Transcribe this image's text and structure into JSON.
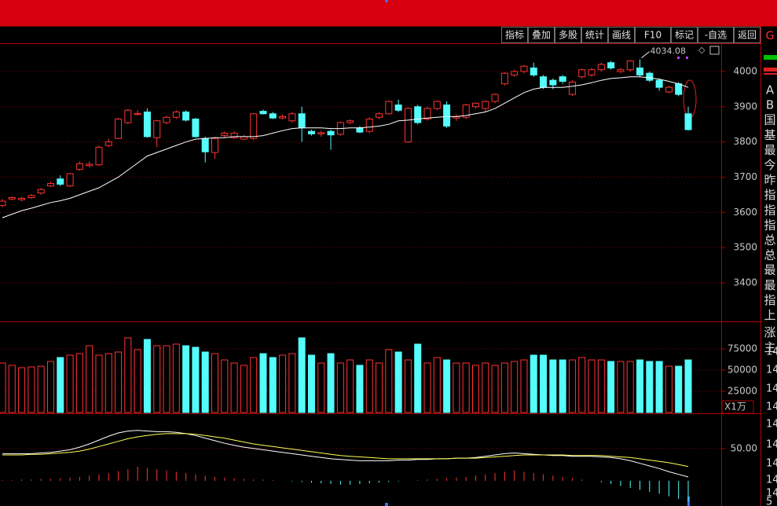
{
  "toolbar": [
    "指标",
    "叠加",
    "多股",
    "统计",
    "画线",
    "F10",
    "标记",
    "-自选",
    "返回"
  ],
  "side_top": "G",
  "side_labels": [
    "A",
    "B",
    "国",
    "基",
    "最",
    "今",
    "昨",
    "指",
    "指",
    "指",
    "总",
    "总",
    "最",
    "最",
    "指",
    "上",
    "涨",
    "主"
  ],
  "side_values": [
    "14",
    "14",
    "14",
    "14",
    "14",
    "14",
    "14",
    "14",
    "14",
    "5"
  ],
  "chart_data": [
    {
      "type": "candlestick",
      "annotation": "4034.08",
      "up_color": "#ff3232",
      "down_color": "#54fcfc",
      "grid": true,
      "ylim": [
        3293,
        4078
      ],
      "yticks": [
        3400,
        3500,
        3600,
        3700,
        3800,
        3900,
        4000
      ],
      "open": [
        3620,
        3638,
        3636,
        3642,
        3655,
        3675,
        3695,
        3675,
        3722,
        3733,
        3735,
        3790,
        3810,
        3855,
        3878,
        3885,
        3812,
        3855,
        3870,
        3885,
        3865,
        3810,
        3770,
        3818,
        3812,
        3808,
        3810,
        3887,
        3880,
        3868,
        3860,
        3880,
        3830,
        3823,
        3830,
        3822,
        3855,
        3840,
        3830,
        3870,
        3880,
        3905,
        3800,
        3900,
        3865,
        3895,
        3905,
        3868,
        3870,
        3900,
        3895,
        3915,
        3965,
        3990,
        4000,
        4010,
        3985,
        3975,
        3985,
        3935,
        3985,
        3990,
        4005,
        4025,
        4000,
        4005,
        4010,
        3995,
        3975,
        3942,
        3965,
        3880
      ],
      "high": [
        3638,
        3645,
        3644,
        3652,
        3670,
        3688,
        3705,
        3712,
        3745,
        3745,
        3790,
        3810,
        3868,
        3893,
        3890,
        3895,
        3863,
        3875,
        3890,
        3890,
        3868,
        3815,
        3815,
        3830,
        3830,
        3820,
        3882,
        3892,
        3885,
        3878,
        3885,
        3900,
        3835,
        3832,
        3835,
        3858,
        3864,
        3845,
        3870,
        3885,
        3918,
        3920,
        3898,
        3905,
        3900,
        3918,
        3915,
        3878,
        3908,
        3912,
        3918,
        3938,
        3998,
        4005,
        4018,
        4025,
        3990,
        3980,
        3990,
        3975,
        4008,
        4010,
        4025,
        4030,
        4010,
        4032,
        4034.08,
        4000,
        3980,
        3960,
        3970,
        3900
      ],
      "low": [
        3615,
        3635,
        3632,
        3638,
        3650,
        3672,
        3675,
        3672,
        3718,
        3728,
        3732,
        3785,
        3808,
        3850,
        3875,
        3812,
        3785,
        3850,
        3865,
        3858,
        3812,
        3742,
        3752,
        3812,
        3808,
        3805,
        3805,
        3878,
        3865,
        3864,
        3855,
        3800,
        3818,
        3815,
        3778,
        3818,
        3850,
        3825,
        3825,
        3865,
        3878,
        3885,
        3798,
        3850,
        3860,
        3890,
        3840,
        3860,
        3865,
        3895,
        3885,
        3910,
        3960,
        3985,
        3995,
        3985,
        3950,
        3950,
        3965,
        3930,
        3980,
        3985,
        4000,
        4005,
        3995,
        4000,
        3985,
        3970,
        3945,
        3938,
        3930,
        3832
      ],
      "close": [
        3632,
        3642,
        3640,
        3648,
        3665,
        3682,
        3680,
        3710,
        3738,
        3737,
        3785,
        3800,
        3865,
        3890,
        3881,
        3815,
        3860,
        3870,
        3885,
        3862,
        3815,
        3772,
        3810,
        3825,
        3825,
        3815,
        3880,
        3880,
        3868,
        3872,
        3880,
        3840,
        3823,
        3826,
        3820,
        3855,
        3860,
        3828,
        3865,
        3880,
        3915,
        3890,
        3895,
        3855,
        3895,
        3915,
        3845,
        3872,
        3905,
        3910,
        3915,
        3935,
        3995,
        4000,
        4015,
        3990,
        3955,
        3962,
        3972,
        3970,
        4005,
        4005,
        4020,
        4010,
        4005,
        4030,
        3990,
        3975,
        3955,
        3955,
        3935,
        3835
      ],
      "series": [
        {
          "color": "#ffffff",
          "values": [
            3585,
            3595,
            3605,
            3612,
            3620,
            3628,
            3633,
            3640,
            3650,
            3660,
            3670,
            3685,
            3700,
            3720,
            3740,
            3760,
            3770,
            3780,
            3790,
            3800,
            3808,
            3810,
            3812,
            3812,
            3815,
            3815,
            3815,
            3818,
            3825,
            3832,
            3838,
            3840,
            3840,
            3840,
            3838,
            3838,
            3840,
            3840,
            3842,
            3845,
            3850,
            3860,
            3862,
            3865,
            3868,
            3870,
            3872,
            3872,
            3875,
            3880,
            3885,
            3895,
            3910,
            3925,
            3940,
            3950,
            3955,
            3955,
            3955,
            3958,
            3962,
            3968,
            3975,
            3980,
            3982,
            3985,
            3985,
            3982,
            3978,
            3972,
            3965,
            3955
          ]
        }
      ]
    },
    {
      "type": "bar",
      "axis_label": "X1万",
      "grid": true,
      "ylim": [
        0,
        106500
      ],
      "yticks": [
        25000,
        50000,
        75000
      ],
      "values": [
        58300,
        55600,
        52800,
        53700,
        54600,
        60200,
        64800,
        67600,
        69400,
        78700,
        67600,
        69400,
        71300,
        88000,
        74100,
        86100,
        78700,
        78700,
        80600,
        78700,
        76900,
        71300,
        69400,
        62000,
        58300,
        55600,
        64800,
        69400,
        64800,
        67600,
        69400,
        88000,
        67600,
        58300,
        69400,
        58300,
        62000,
        55600,
        62000,
        58300,
        74100,
        71300,
        62000,
        80600,
        58300,
        64800,
        62000,
        58300,
        58300,
        55600,
        58300,
        55600,
        58300,
        60200,
        62000,
        67600,
        67600,
        62000,
        62000,
        62000,
        64800,
        62000,
        62000,
        60200,
        60200,
        60200,
        62000,
        60200,
        60200,
        54600,
        54600,
        62000
      ]
    },
    {
      "type": "macd",
      "grid": true,
      "ylim": [
        -39,
        102
      ],
      "yticks": [
        {
          "value": 50,
          "label": "50.00"
        }
      ],
      "values": [
        1,
        1,
        2,
        2,
        3,
        3,
        4,
        5,
        6,
        8,
        10,
        12,
        15,
        18,
        22,
        20,
        18,
        16,
        14,
        12,
        10,
        8,
        6,
        5,
        4,
        3,
        2,
        2,
        1,
        0,
        -1,
        -2,
        -3,
        -4,
        -5,
        -6,
        -6,
        -5,
        -4,
        -3,
        -2,
        -1,
        0,
        1,
        2,
        3,
        4,
        5,
        6,
        8,
        10,
        12,
        14,
        16,
        14,
        12,
        10,
        8,
        6,
        4,
        2,
        0,
        -2,
        -5,
        -8,
        -11,
        -14,
        -17,
        -20,
        -24,
        -28,
        -32
      ],
      "series": [
        {
          "color": "#ffffff",
          "values": [
            42,
            42,
            42,
            42,
            43,
            44,
            46,
            48,
            52,
            57,
            63,
            69,
            74,
            77,
            78,
            77,
            76,
            76,
            75,
            73,
            70,
            66,
            62,
            58,
            55,
            52,
            50,
            48,
            46,
            44,
            42,
            40,
            38,
            36,
            34,
            33,
            32,
            31,
            31,
            31,
            31,
            32,
            32,
            33,
            33,
            34,
            34,
            35,
            35,
            36,
            38,
            40,
            42,
            43,
            42,
            41,
            40,
            39,
            39,
            38,
            38,
            38,
            37,
            36,
            34,
            31,
            27,
            23,
            19,
            14,
            10,
            6
          ]
        },
        {
          "color": "#ffff54",
          "values": [
            40,
            40,
            40,
            41,
            41,
            42,
            43,
            44,
            46,
            49,
            53,
            57,
            61,
            65,
            68,
            70,
            72,
            73,
            73,
            73,
            72,
            70,
            68,
            66,
            63,
            60,
            57,
            55,
            53,
            51,
            49,
            47,
            45,
            43,
            41,
            39,
            38,
            37,
            36,
            35,
            34,
            34,
            34,
            34,
            34,
            34,
            34,
            35,
            35,
            35,
            36,
            37,
            38,
            39,
            40,
            40,
            40,
            40,
            40,
            39,
            39,
            39,
            39,
            38,
            37,
            36,
            34,
            32,
            30,
            28,
            25,
            22
          ]
        }
      ]
    }
  ]
}
